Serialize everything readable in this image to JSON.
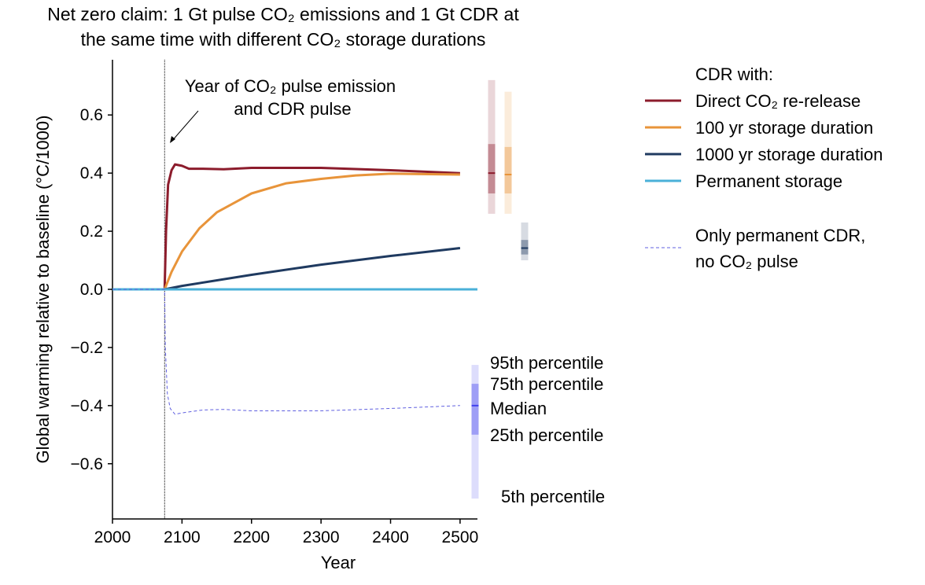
{
  "chart_data": {
    "type": "line",
    "title_line1": "Net zero claim: 1 Gt pulse CO₂ emissions and 1 Gt CDR at",
    "title_line2": "the same time with different CO₂ storage durations",
    "xlabel": "Year",
    "ylabel": "Global warming relative to baseline (°C/1000)",
    "xlim": [
      2000,
      2525
    ],
    "ylim": [
      -0.79,
      0.79
    ],
    "xticks": [
      2000,
      2100,
      2200,
      2300,
      2400,
      2500
    ],
    "yticks": [
      -0.6,
      -0.4,
      -0.2,
      0.0,
      0.2,
      0.4,
      0.6
    ],
    "ytick_labels": [
      "−0.6",
      "−0.4",
      "−0.2",
      "0.0",
      "0.2",
      "0.4",
      "0.6"
    ],
    "grid": false,
    "vline_year": 2075,
    "annotation_line1": "Year of CO₂ pulse emission",
    "annotation_line2": "and CDR pulse",
    "legend_title": "CDR with:",
    "series": [
      {
        "name": "Direct CO₂ re-release",
        "color": "#8c1c2c",
        "style": "solid",
        "x": [
          2000,
          2075,
          2077,
          2080,
          2085,
          2090,
          2100,
          2110,
          2130,
          2160,
          2200,
          2300,
          2400,
          2500
        ],
        "y": [
          0,
          0,
          0.2,
          0.36,
          0.41,
          0.43,
          0.425,
          0.415,
          0.415,
          0.413,
          0.418,
          0.418,
          0.41,
          0.4
        ]
      },
      {
        "name": "100 yr storage duration",
        "color": "#e8943a",
        "style": "solid",
        "x": [
          2000,
          2075,
          2085,
          2100,
          2125,
          2150,
          2200,
          2250,
          2300,
          2350,
          2400,
          2500
        ],
        "y": [
          0,
          0,
          0.06,
          0.13,
          0.21,
          0.265,
          0.33,
          0.365,
          0.38,
          0.392,
          0.398,
          0.395
        ]
      },
      {
        "name": "1000 yr storage duration",
        "color": "#1f3a60",
        "style": "solid",
        "x": [
          2000,
          2075,
          2100,
          2200,
          2300,
          2400,
          2500
        ],
        "y": [
          0,
          0,
          0.012,
          0.05,
          0.085,
          0.115,
          0.142
        ]
      },
      {
        "name": "Permanent storage",
        "color": "#4ab0d8",
        "style": "solid",
        "x": [
          2000,
          2525
        ],
        "y": [
          0,
          0
        ]
      },
      {
        "name_line1": "Only permanent CDR,",
        "name_line2": "no CO₂ pulse",
        "color": "#6060e0",
        "style": "dashed",
        "x": [
          2000,
          2075,
          2076,
          2079,
          2083,
          2090,
          2100,
          2130,
          2160,
          2200,
          2300,
          2400,
          2500
        ],
        "y": [
          0,
          0,
          -0.2,
          -0.36,
          -0.41,
          -0.43,
          -0.425,
          -0.415,
          -0.413,
          -0.418,
          -0.418,
          -0.41,
          -0.4
        ]
      }
    ],
    "ranges": [
      {
        "name": "Direct CO₂ re-release",
        "color": "#8c1c2c",
        "p5": 0.26,
        "p25": 0.33,
        "median": 0.4,
        "p75": 0.5,
        "p95": 0.72
      },
      {
        "name": "100 yr storage duration",
        "color": "#e8943a",
        "p5": 0.26,
        "p25": 0.33,
        "median": 0.395,
        "p75": 0.49,
        "p95": 0.68
      },
      {
        "name": "1000 yr storage duration",
        "color": "#1f3a60",
        "p5": 0.1,
        "p25": 0.12,
        "median": 0.142,
        "p75": 0.17,
        "p95": 0.23
      },
      {
        "name": "Permanent storage",
        "color": "#4ab0d8",
        "p5": 0.0,
        "p25": 0.0,
        "median": 0.0,
        "p75": 0.0,
        "p95": 0.0
      },
      {
        "name": "Only permanent CDR, no CO₂ pulse",
        "color": "#4040ee",
        "p5": -0.72,
        "p25": -0.5,
        "median": -0.4,
        "p75": -0.325,
        "p95": -0.26
      }
    ],
    "percentile_labels": {
      "p95": "95th percentile",
      "p75": "75th percentile",
      "median": "Median",
      "p25": "25th percentile",
      "p5": "5th percentile"
    }
  }
}
